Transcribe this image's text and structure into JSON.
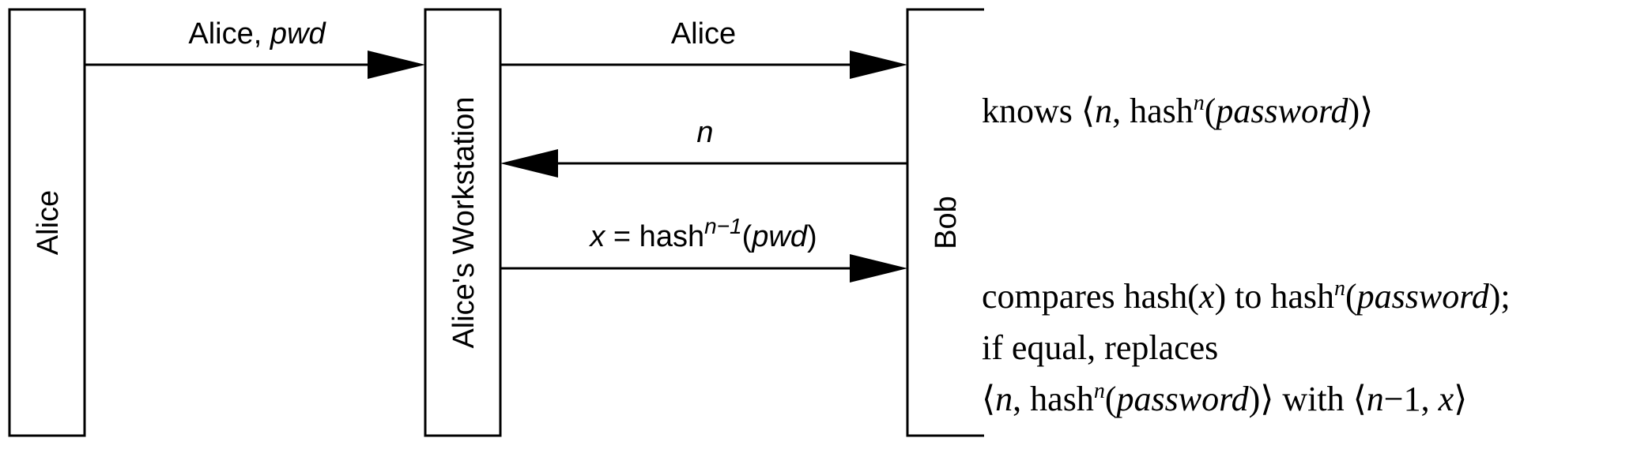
{
  "entities": {
    "alice": "Alice",
    "workstation": "Alice's Workstation",
    "bob": "Bob"
  },
  "messages": {
    "m1": {
      "pre": "Alice, ",
      "italic": "pwd"
    },
    "m2": {
      "text": "Alice"
    },
    "m3": {
      "italic": "n"
    },
    "m4": {
      "x": "x",
      "eq": " = hash",
      "sup": "n−1",
      "open": "(",
      "pwd": "pwd",
      "close": ")"
    }
  },
  "notes": {
    "knows": {
      "pre": "knows ⟨",
      "n": "n",
      "comma_hash": ", hash",
      "sup": "n",
      "open": "(",
      "password": "password",
      "close": ")⟩"
    },
    "compare": {
      "line1": {
        "pre": "compares hash(",
        "x": "x",
        "mid": ") to hash",
        "sup": "n",
        "open": "(",
        "password": "password",
        "close": ");"
      },
      "line2": "if equal, replaces",
      "line3": {
        "open_angle": "⟨",
        "n": "n",
        "comma_hash": ", hash",
        "sup": "n",
        "open": "(",
        "password": "password",
        "close": ")⟩ with ⟨",
        "n2": "n",
        "minus_one": "−1, ",
        "x": "x",
        "end": "⟩"
      }
    }
  }
}
